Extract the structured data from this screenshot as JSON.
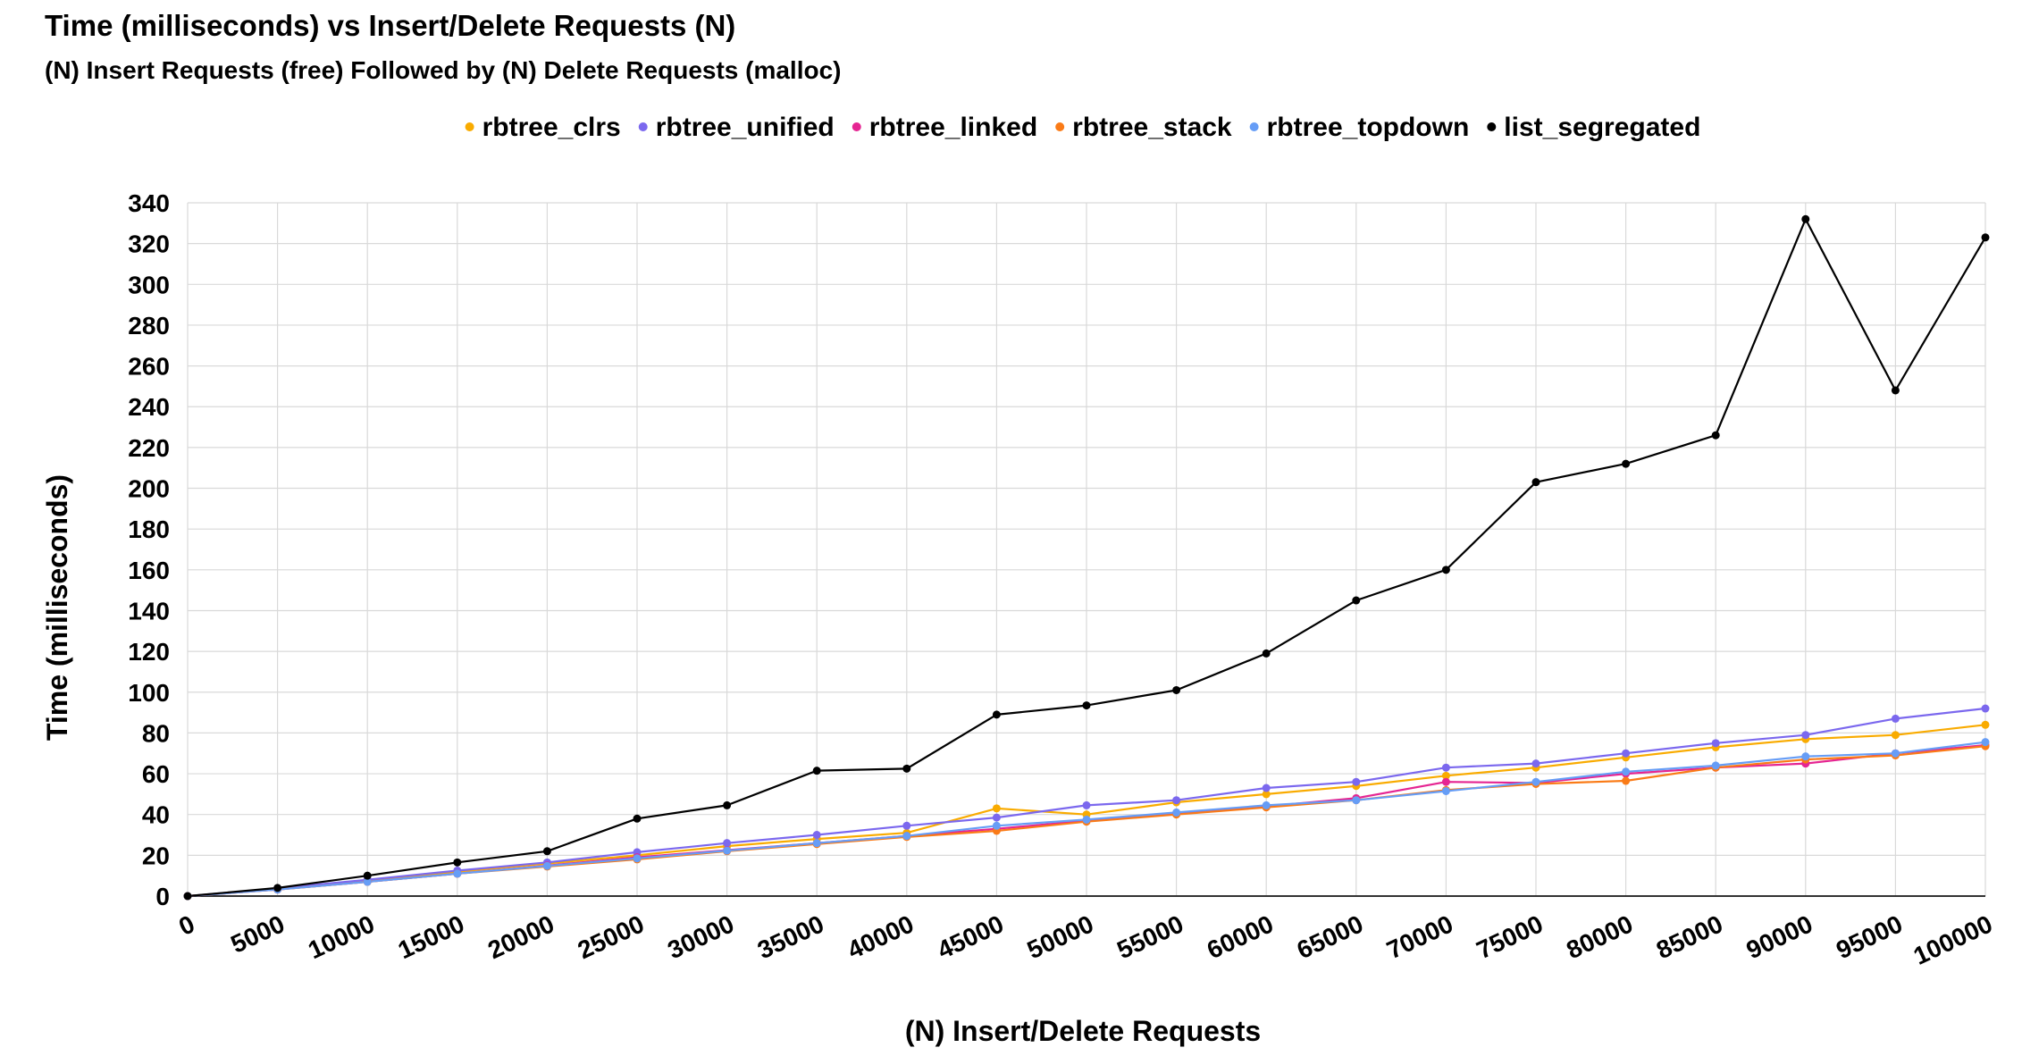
{
  "chart_data": {
    "type": "line",
    "title": "Time (milliseconds) vs Insert/Delete Requests (N)",
    "subtitle": "(N) Insert Requests (free) Followed by (N) Delete Requests (malloc)",
    "xlabel": "(N) Insert/Delete Requests",
    "ylabel": "Time (milliseconds)",
    "legend_position": "top",
    "grid": true,
    "ylim": [
      0,
      340
    ],
    "yticks": [
      0,
      20,
      40,
      60,
      80,
      100,
      120,
      140,
      160,
      180,
      200,
      220,
      240,
      260,
      280,
      300,
      320,
      340
    ],
    "x": [
      0,
      5000,
      10000,
      15000,
      20000,
      25000,
      30000,
      35000,
      40000,
      45000,
      50000,
      55000,
      60000,
      65000,
      70000,
      75000,
      80000,
      85000,
      90000,
      95000,
      100000
    ],
    "series": [
      {
        "name": "rbtree_clrs",
        "color": "#f9ab00",
        "values": [
          0,
          3.5,
          7.5,
          12,
          16,
          20,
          24.5,
          28,
          31,
          43,
          40,
          46,
          50,
          54,
          59,
          63,
          68,
          73,
          77,
          79,
          84
        ]
      },
      {
        "name": "rbtree_unified",
        "color": "#7b68ee",
        "values": [
          0,
          3.8,
          8,
          12.5,
          16.5,
          21.5,
          26,
          30,
          34.5,
          38.5,
          44.5,
          47,
          53,
          56,
          63,
          65,
          70,
          75,
          79,
          87,
          92
        ]
      },
      {
        "name": "rbtree_linked",
        "color": "#e52592",
        "values": [
          0,
          3.2,
          7,
          11,
          15,
          19,
          22.5,
          26,
          29.5,
          33,
          37,
          40.5,
          44,
          48,
          56,
          55.5,
          60,
          63,
          65,
          70,
          74
        ]
      },
      {
        "name": "rbtree_stack",
        "color": "#fa7b17",
        "values": [
          0,
          3.2,
          7,
          11,
          14.5,
          18,
          22,
          25.5,
          29,
          32,
          36.5,
          40,
          43.5,
          47,
          52,
          55,
          56.5,
          63,
          67,
          69,
          73.5
        ]
      },
      {
        "name": "rbtree_topdown",
        "color": "#669df6",
        "values": [
          0,
          3.2,
          7,
          11,
          14.8,
          18.5,
          22.3,
          26,
          29.5,
          34.5,
          37.5,
          41,
          44.5,
          47,
          51.5,
          56,
          61,
          64,
          68.5,
          70,
          75.5
        ]
      },
      {
        "name": "list_segregated",
        "color": "#000000",
        "values": [
          0,
          4,
          10,
          16.5,
          22,
          38,
          44.5,
          61.5,
          62.5,
          89,
          93.5,
          101,
          119,
          145,
          160,
          203,
          212,
          226,
          332,
          248,
          323
        ]
      }
    ]
  }
}
